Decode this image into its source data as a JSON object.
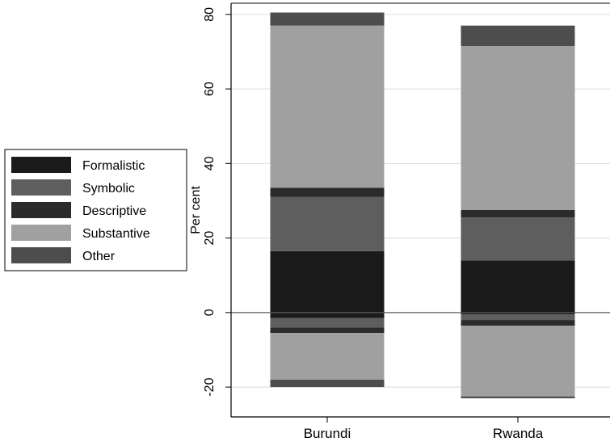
{
  "chart_data": {
    "type": "bar",
    "stacked": true,
    "title": "",
    "xlabel": "",
    "ylabel": "Per cent",
    "ylim": [
      -28,
      83
    ],
    "yticks": [
      -20,
      0,
      20,
      40,
      60,
      80
    ],
    "grid": true,
    "legend_position": "left",
    "categories": [
      "Burundi",
      "Rwanda"
    ],
    "series": [
      {
        "name": "Formalistic",
        "color": "#1a1a1a",
        "positive": [
          16.5,
          14.0
        ],
        "negative": [
          -1.5,
          -0.5
        ]
      },
      {
        "name": "Symbolic",
        "color": "#5e5e5e",
        "positive": [
          14.5,
          11.5
        ],
        "negative": [
          -2.5,
          -1.5
        ]
      },
      {
        "name": "Descriptive",
        "color": "#2b2b2b",
        "positive": [
          2.5,
          2.0
        ],
        "negative": [
          -1.5,
          -1.5
        ]
      },
      {
        "name": "Substantive",
        "color": "#a0a0a0",
        "positive": [
          43.5,
          44.0
        ],
        "negative": [
          -12.5,
          -19.0
        ]
      },
      {
        "name": "Other",
        "color": "#4d4d4d",
        "positive": [
          3.5,
          5.5
        ],
        "negative": [
          -2.0,
          -0.5
        ]
      }
    ]
  }
}
